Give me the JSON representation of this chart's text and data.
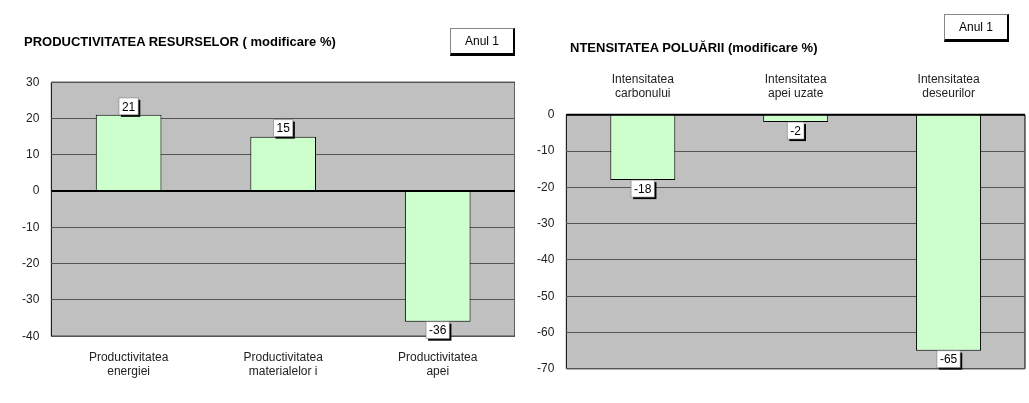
{
  "chart_data": [
    {
      "type": "bar",
      "title": "PRODUCTIVITATEA RESURSELOR ( modificare %)",
      "subtitle": "Anul 1",
      "categories": [
        "Productivitatea energiei",
        "Productivitatea materialelor i",
        "Productivitatea apei"
      ],
      "values": [
        21,
        15,
        -36
      ],
      "color": "#ccffcc",
      "ylim": [
        -40,
        30
      ],
      "yticks": [
        -40,
        -30,
        -20,
        -10,
        0,
        10,
        20,
        30
      ],
      "grid": "y",
      "data_labels": true
    },
    {
      "type": "bar",
      "title": "NTENSITATEA POLUĂRII (modificare %)",
      "subtitle": "Anul 1",
      "categories": [
        "Intensitatea carbonului",
        "Intensitatea apei uzate",
        "Intensitatea deseurilor"
      ],
      "values": [
        -18,
        -2,
        -65
      ],
      "color": "#ccffcc",
      "ylim": [
        -70,
        0
      ],
      "yticks": [
        -70,
        -60,
        -50,
        -40,
        -30,
        -20,
        -10,
        0
      ],
      "grid": "y",
      "data_labels": true
    }
  ]
}
